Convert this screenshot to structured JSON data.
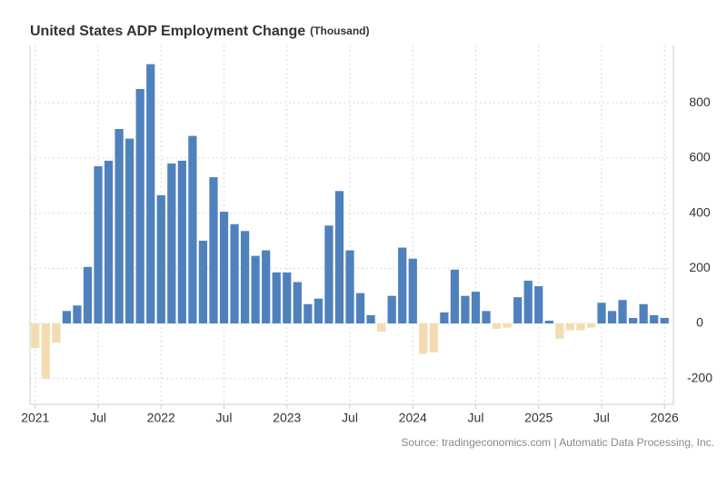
{
  "chart_data": {
    "type": "bar",
    "title": "United States ADP Employment Change",
    "subtitle": "(Thousand)",
    "source": "Source: tradingeconomics.com | Automatic Data Processing, Inc.",
    "categories": [
      "2021",
      null,
      null,
      null,
      null,
      null,
      "Jul",
      null,
      null,
      null,
      null,
      null,
      "2022",
      null,
      null,
      null,
      null,
      null,
      "Jul",
      null,
      null,
      null,
      null,
      null,
      "2023",
      null,
      null,
      null,
      null,
      null,
      "Jul",
      null,
      null,
      null,
      null,
      null,
      "2024",
      null,
      null,
      null,
      null,
      null,
      "Jul",
      null,
      null,
      null,
      null,
      null,
      "2025",
      null,
      null,
      null,
      null,
      null,
      "Jul",
      null,
      null,
      null,
      null,
      null,
      "2026"
    ],
    "values": [
      -90,
      -200,
      -70,
      45,
      65,
      205,
      570,
      590,
      705,
      670,
      850,
      940,
      465,
      580,
      590,
      680,
      300,
      530,
      405,
      360,
      335,
      245,
      265,
      185,
      185,
      150,
      70,
      90,
      355,
      480,
      265,
      110,
      30,
      -30,
      100,
      275,
      235,
      -110,
      -105,
      40,
      195,
      100,
      115,
      45,
      -20,
      -15,
      95,
      155,
      135,
      10,
      -55,
      -25,
      -25,
      -15,
      75,
      45,
      85,
      20,
      70,
      30,
      20
    ],
    "color": "#4f81bd",
    "negative_color": "#f3dcb1",
    "ylim": [
      -293,
      1008
    ],
    "yticks": [
      -200,
      0,
      200,
      400,
      600,
      800
    ],
    "grid": true
  }
}
